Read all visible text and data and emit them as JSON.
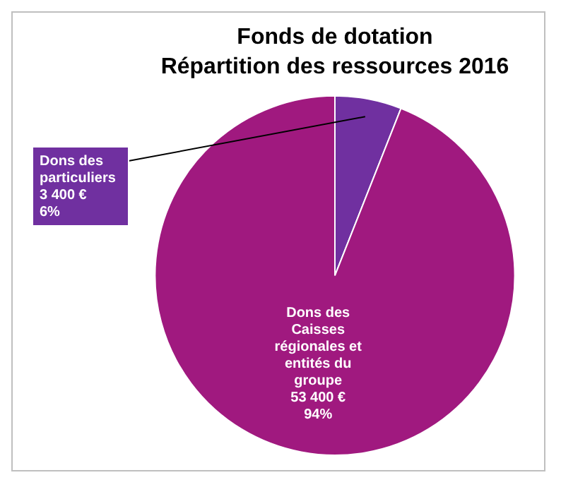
{
  "chart_data": {
    "type": "pie",
    "title": "Fonds de dotation",
    "subtitle": "Répartition des ressources 2016",
    "categories": [
      "Dons des particuliers",
      "Dons des Caisses régionales et entités du groupe"
    ],
    "values": [
      3400,
      53400
    ],
    "colors": [
      "#7030a0",
      "#a0197f"
    ],
    "value_labels": [
      "3 400 €\n6%",
      "53 400 €\n94%"
    ],
    "legend": false
  }
}
